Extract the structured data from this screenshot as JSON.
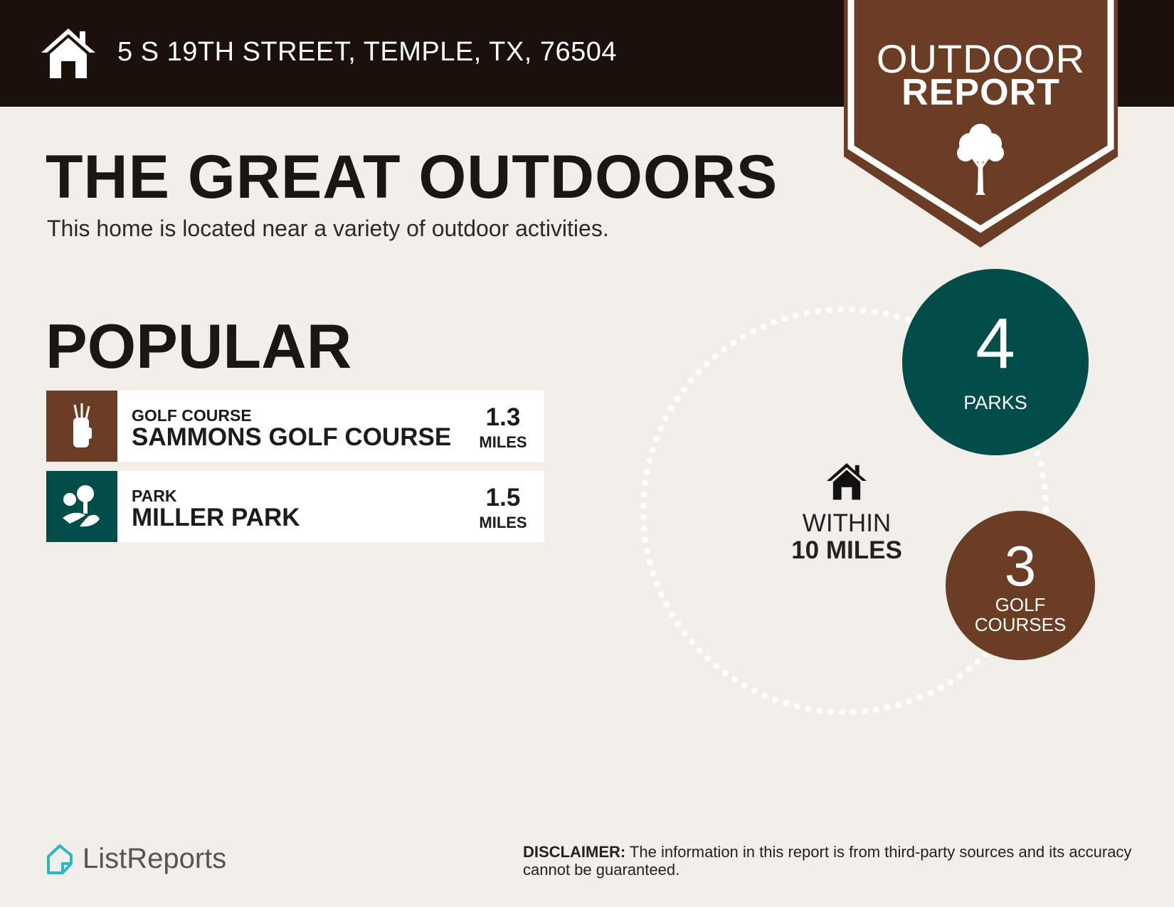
{
  "header": {
    "address": "5 S 19TH STREET, TEMPLE, TX, 76504",
    "icon": "home-icon"
  },
  "badge": {
    "line1": "OUTDOOR",
    "line2": "REPORT",
    "icon": "tree-icon"
  },
  "main": {
    "title": "THE GREAT OUTDOORS",
    "subtitle": "This home is located near a variety of outdoor activities.",
    "section": "POPULAR"
  },
  "popular": [
    {
      "category": "GOLF COURSE",
      "name": "SAMMONS GOLF COURSE",
      "distance": "1.3",
      "unit": "MILES",
      "icon": "golf-bag-icon",
      "color": "#6b3d24"
    },
    {
      "category": "PARK",
      "name": "MILLER PARK",
      "distance": "1.5",
      "unit": "MILES",
      "icon": "park-icon",
      "color": "#004d4a"
    }
  ],
  "summary": {
    "within1": "WITHIN",
    "within2": "10 MILES",
    "parks_count": "4",
    "parks_label": "PARKS",
    "golf_count": "3",
    "golf_label1": "GOLF",
    "golf_label2": "COURSES"
  },
  "footer": {
    "brand": "ListReports",
    "disclaimer_label": "DISCLAIMER:",
    "disclaimer_text": " The information in this report is from third-party sources and its accuracy cannot be guaranteed."
  },
  "colors": {
    "header": "#1b100c",
    "brown": "#6b3d24",
    "teal": "#004d4a",
    "background": "#f2eeea",
    "logo": "#2bb7c4"
  }
}
